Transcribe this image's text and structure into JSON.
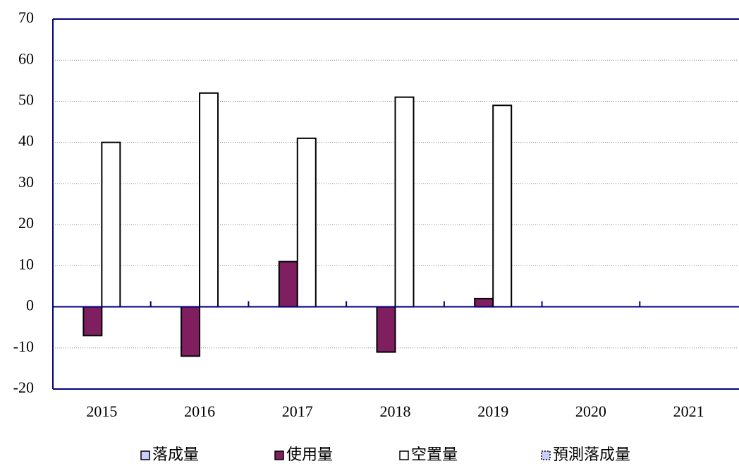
{
  "chart_data": {
    "type": "bar",
    "categories": [
      "2015",
      "2016",
      "2017",
      "2018",
      "2019",
      "2020",
      "2021"
    ],
    "series": [
      {
        "name": "落成量",
        "color": "#ccccff",
        "values": [
          null,
          null,
          null,
          null,
          null,
          null,
          null
        ]
      },
      {
        "name": "使用量",
        "color": "#7f1f5f",
        "values": [
          -7,
          -12,
          11,
          -11,
          2,
          null,
          null
        ]
      },
      {
        "name": "空置量",
        "color": "#ffffff",
        "values": [
          40,
          52,
          41,
          51,
          49,
          null,
          null
        ]
      },
      {
        "name": "預測落成量",
        "color": "#ccccff",
        "values": [
          null,
          null,
          null,
          null,
          null,
          null,
          null
        ]
      }
    ],
    "ylim": [
      -20,
      70
    ],
    "yticks": [
      -20,
      -10,
      0,
      10,
      20,
      30,
      40,
      50,
      60,
      70
    ],
    "grid": true,
    "legend": "bottom"
  }
}
